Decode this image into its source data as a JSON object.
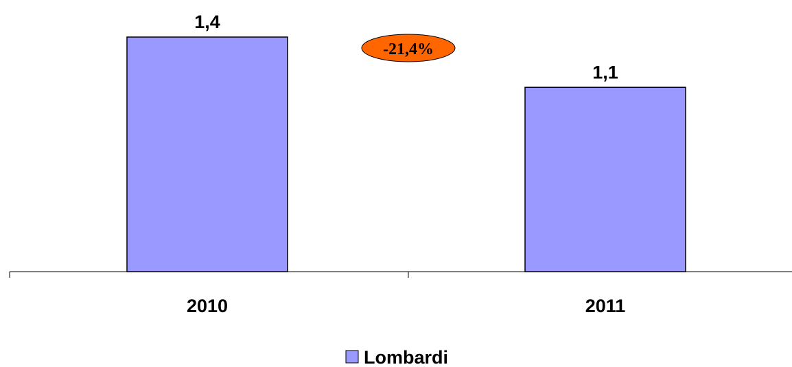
{
  "chart_data": {
    "type": "bar",
    "categories": [
      "2010",
      "2011"
    ],
    "series": [
      {
        "name": "Lombardi",
        "values": [
          1.4,
          1.1
        ],
        "value_labels": [
          "1,4",
          "1,1"
        ]
      }
    ],
    "ylim": [
      0,
      1.4
    ],
    "grid": false,
    "legend": "bottom",
    "annotations": [
      {
        "text": "-21,4%"
      }
    ],
    "colors": {
      "bar": "#9999ff",
      "badge": "#ff6600",
      "stroke": "#000000"
    }
  }
}
